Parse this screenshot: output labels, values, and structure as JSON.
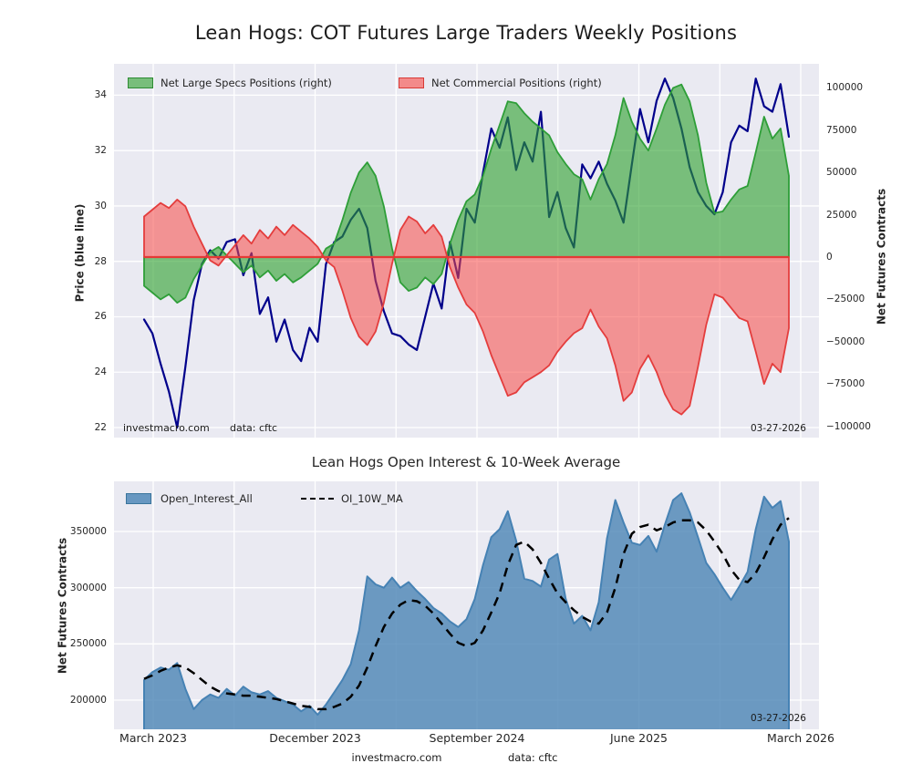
{
  "figure": {
    "title": "Lean Hogs: COT Futures Large Traders Weekly Positions",
    "footer_watermark": "investmacro.com",
    "footer_source": "data: cftc",
    "plot_bg": "#eaeaf2",
    "grid_color": "#ffffff"
  },
  "chart_data": [
    {
      "type": "line",
      "title": "",
      "x_note": "weekly data Feb 2023 - Mar 2026, downsampled to 79 biweekly samples",
      "y_left": {
        "label": "Price (blue line)",
        "ticks": [
          22,
          24,
          26,
          28,
          30,
          32,
          34
        ],
        "ylim": [
          21.6,
          35.1
        ]
      },
      "y_right": {
        "label": "Net Futures Contracts",
        "ticks": [
          100000,
          75000,
          50000,
          25000,
          0,
          -25000,
          -50000,
          -75000,
          -100000
        ],
        "ylim": [
          -107500,
          106000
        ]
      },
      "legend": [
        {
          "label": "Net Large Specs Positions (right)",
          "color": "#2ca02c"
        },
        {
          "label": "Net Commercial Positions (right)",
          "color": "#f8493f"
        }
      ],
      "watermark": "investmacro.com",
      "source": "data: cftc",
      "date_stamp": "03-27-2026",
      "zero_line_color": "#e53935",
      "grid": true,
      "series": [
        {
          "name": "Price",
          "render": "line",
          "axis": "left",
          "color": "#00008b",
          "values": [
            25.9,
            25.4,
            24.3,
            23.3,
            22.0,
            24.2,
            26.6,
            27.9,
            28.4,
            28.1,
            28.7,
            28.8,
            27.5,
            28.3,
            26.1,
            26.7,
            25.1,
            25.9,
            24.8,
            24.4,
            25.6,
            25.1,
            27.9,
            28.7,
            28.9,
            29.5,
            29.9,
            29.2,
            27.3,
            26.2,
            25.4,
            25.3,
            25.0,
            24.8,
            26.0,
            27.2,
            26.3,
            28.7,
            27.4,
            29.9,
            29.4,
            31.2,
            32.8,
            32.1,
            33.2,
            31.3,
            32.3,
            31.6,
            33.4,
            29.6,
            30.5,
            29.2,
            28.5,
            31.5,
            31.0,
            31.6,
            30.8,
            30.2,
            29.4,
            31.5,
            33.5,
            32.3,
            33.8,
            34.6,
            33.9,
            32.8,
            31.4,
            30.5,
            30.0,
            29.7,
            30.5,
            32.3,
            32.9,
            32.7,
            34.6,
            33.6,
            33.4,
            34.4,
            32.5
          ]
        },
        {
          "name": "Net Large Specs Positions",
          "render": "area",
          "axis": "right",
          "color": "#2ca02c",
          "fill_alpha": 0.6,
          "values": [
            -17000,
            -21000,
            -25000,
            -22000,
            -27000,
            -24000,
            -13000,
            -5000,
            3000,
            6000,
            1000,
            -4000,
            -9000,
            -5000,
            -12000,
            -8000,
            -14000,
            -10000,
            -15000,
            -12000,
            -8000,
            -4000,
            5000,
            8000,
            22000,
            38000,
            50000,
            56000,
            48000,
            30000,
            5000,
            -15000,
            -20000,
            -18000,
            -12000,
            -16000,
            -10000,
            8000,
            22000,
            33000,
            37000,
            48000,
            64000,
            78000,
            92000,
            91000,
            85000,
            80000,
            76000,
            72000,
            62000,
            55000,
            49000,
            46000,
            34000,
            46000,
            55000,
            72000,
            94000,
            80000,
            70000,
            63000,
            76000,
            90000,
            100000,
            102000,
            92000,
            72000,
            44000,
            26000,
            27000,
            34000,
            40000,
            42000,
            62000,
            83000,
            70000,
            76000,
            48000
          ]
        },
        {
          "name": "Net Commercial Positions",
          "render": "area",
          "axis": "right",
          "color": "#f8493f",
          "fill_alpha": 0.55,
          "values": [
            24000,
            28000,
            32000,
            29000,
            34000,
            30000,
            18000,
            8000,
            -2000,
            -5000,
            1000,
            7000,
            13000,
            8000,
            16000,
            11000,
            18000,
            13000,
            19000,
            15000,
            11000,
            6000,
            -2000,
            -6000,
            -20000,
            -36000,
            -47000,
            -52000,
            -44000,
            -27000,
            -4000,
            16000,
            24000,
            21000,
            14000,
            19000,
            12000,
            -6000,
            -18000,
            -28000,
            -33000,
            -44000,
            -58000,
            -70000,
            -82000,
            -80000,
            -74000,
            -71000,
            -68000,
            -64000,
            -56000,
            -50000,
            -45000,
            -42000,
            -31000,
            -41000,
            -48000,
            -64000,
            -85000,
            -80000,
            -66000,
            -58000,
            -68000,
            -81000,
            -90000,
            -93000,
            -88000,
            -65000,
            -40000,
            -22000,
            -24000,
            -30000,
            -36000,
            -38000,
            -56000,
            -75000,
            -63000,
            -68000,
            -42000
          ]
        }
      ]
    },
    {
      "type": "area",
      "title": "Lean Hogs Open Interest & 10-Week Average",
      "y_left": {
        "label": "Net Futures Contracts",
        "ticks": [
          200000,
          250000,
          300000,
          350000
        ],
        "ylim": [
          174000,
          395000
        ]
      },
      "x_axis": {
        "tick_labels": [
          "March 2023",
          "December 2023",
          "September 2024",
          "June 2025",
          "March 2026"
        ]
      },
      "legend": [
        {
          "label": "Open_Interest_All",
          "color": "#4682b4"
        },
        {
          "label": "OI_10W_MA",
          "color": "#000000"
        }
      ],
      "date_stamp": "03-27-2026",
      "grid": true,
      "series": [
        {
          "name": "Open_Interest_All",
          "render": "area",
          "color": "#4682b4",
          "fill_alpha": 0.78,
          "values": [
            218000,
            225000,
            229000,
            227000,
            233000,
            210000,
            192000,
            200000,
            205000,
            202000,
            210000,
            204000,
            212000,
            207000,
            205000,
            208000,
            202000,
            199000,
            196000,
            190000,
            195000,
            187000,
            196000,
            207000,
            218000,
            232000,
            262000,
            310000,
            303000,
            300000,
            309000,
            300000,
            305000,
            297000,
            290000,
            282000,
            277000,
            270000,
            265000,
            272000,
            290000,
            320000,
            345000,
            352000,
            368000,
            342000,
            308000,
            306000,
            301000,
            325000,
            330000,
            290000,
            268000,
            275000,
            262000,
            287000,
            344000,
            378000,
            358000,
            340000,
            338000,
            346000,
            332000,
            356000,
            378000,
            384000,
            367000,
            345000,
            322000,
            312000,
            300000,
            289000,
            301000,
            314000,
            352000,
            381000,
            371000,
            377000,
            341000
          ]
        },
        {
          "name": "OI_10W_MA",
          "render": "dashed-line",
          "color": "#000000",
          "values": [
            219000,
            222000,
            226000,
            229000,
            231000,
            229000,
            224000,
            218000,
            212000,
            208000,
            206000,
            205000,
            204000,
            204000,
            203000,
            202000,
            201000,
            199000,
            197000,
            195000,
            194000,
            192000,
            192000,
            194000,
            197000,
            203000,
            213000,
            229000,
            248000,
            265000,
            277000,
            285000,
            289000,
            288000,
            284000,
            277000,
            268000,
            259000,
            251000,
            248000,
            251000,
            262000,
            278000,
            295000,
            320000,
            338000,
            341000,
            334000,
            322000,
            308000,
            295000,
            287000,
            280000,
            274000,
            270000,
            268000,
            278000,
            300000,
            330000,
            348000,
            354000,
            356000,
            351000,
            354000,
            358000,
            360000,
            360000,
            358000,
            351000,
            341000,
            330000,
            316000,
            307000,
            305000,
            313000,
            327000,
            343000,
            356000,
            362000
          ]
        }
      ]
    }
  ]
}
